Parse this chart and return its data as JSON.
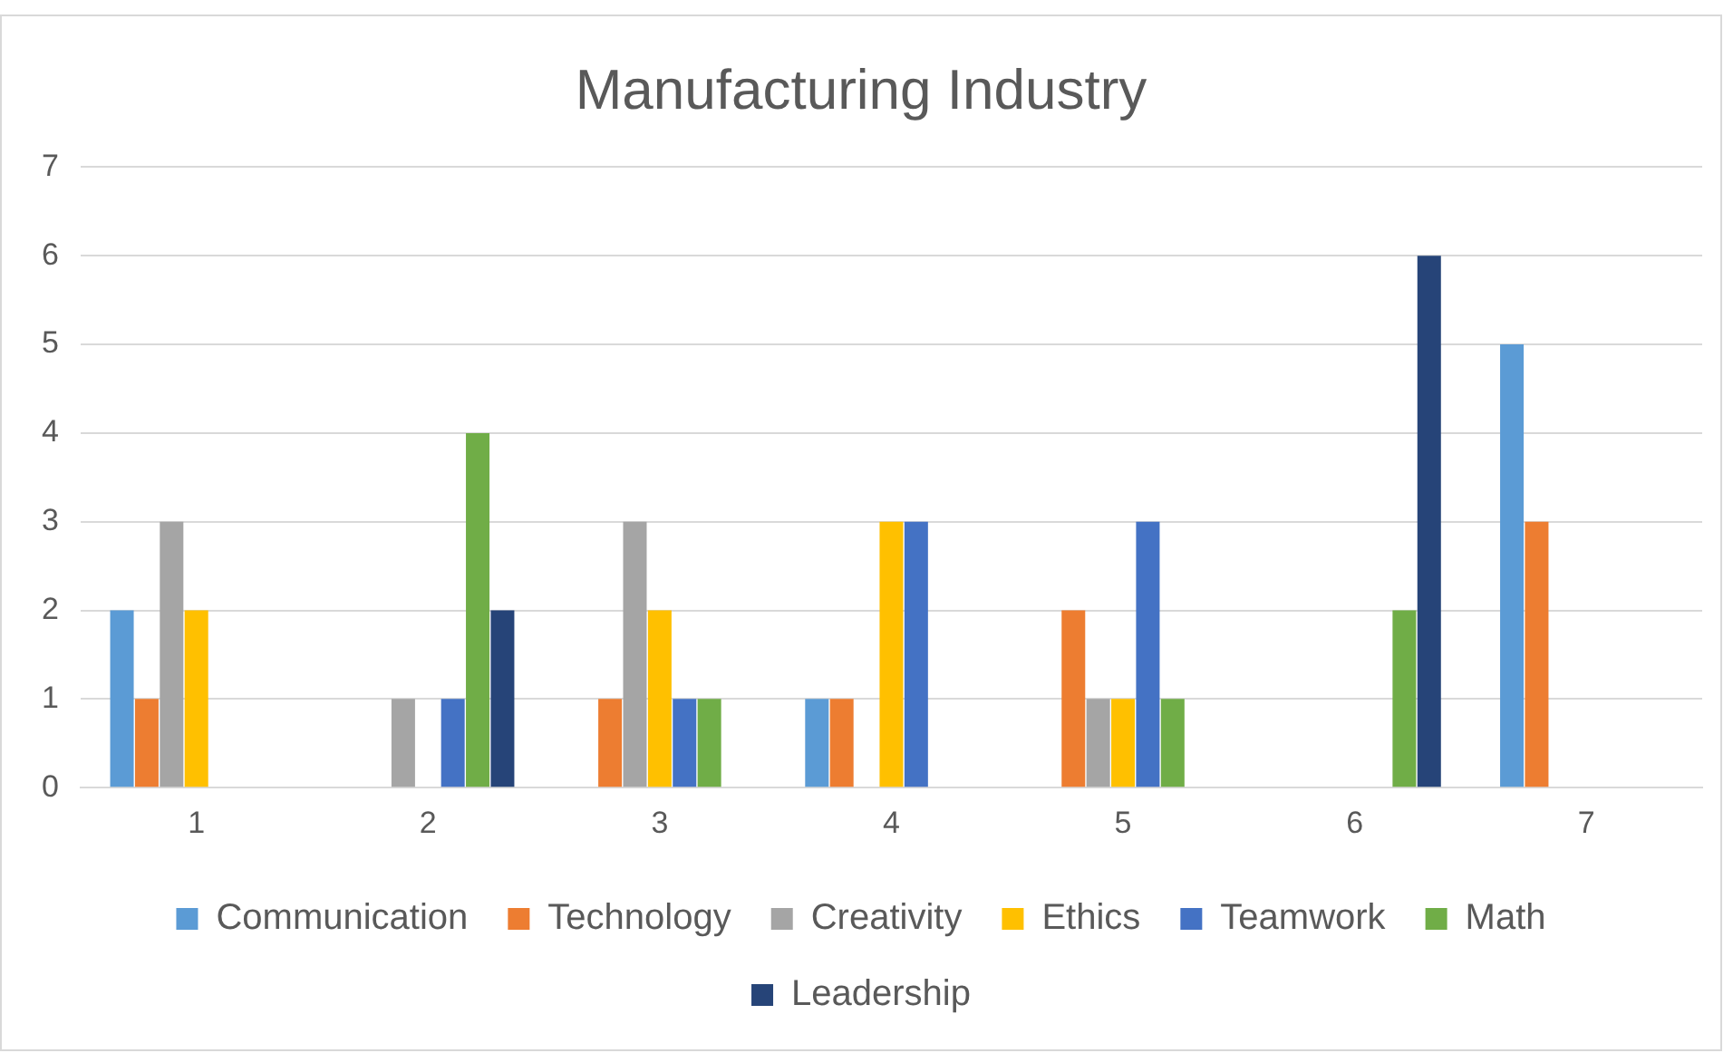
{
  "chart_data": {
    "type": "bar",
    "title": "Manufacturing Industry",
    "categories": [
      "1",
      "2",
      "3",
      "4",
      "5",
      "6",
      "7"
    ],
    "series": [
      {
        "name": "Communication",
        "color": "#5b9bd5",
        "values": [
          2,
          0,
          0,
          1,
          0,
          0,
          5
        ]
      },
      {
        "name": "Technology",
        "color": "#ed7d31",
        "values": [
          1,
          0,
          1,
          1,
          2,
          0,
          3
        ]
      },
      {
        "name": "Creativity",
        "color": "#a5a5a5",
        "values": [
          3,
          1,
          3,
          0,
          1,
          0,
          0
        ]
      },
      {
        "name": "Ethics",
        "color": "#ffc000",
        "values": [
          2,
          0,
          2,
          3,
          1,
          0,
          0
        ]
      },
      {
        "name": "Teamwork",
        "color": "#4472c4",
        "values": [
          0,
          1,
          1,
          3,
          3,
          0,
          0
        ]
      },
      {
        "name": "Math",
        "color": "#70ad47",
        "values": [
          0,
          4,
          1,
          0,
          1,
          2,
          0
        ]
      },
      {
        "name": "Leadership",
        "color": "#264478",
        "values": [
          0,
          2,
          0,
          0,
          0,
          6,
          0
        ]
      }
    ],
    "ylim": [
      0,
      7
    ],
    "yticks": [
      0,
      1,
      2,
      3,
      4,
      5,
      6,
      7
    ],
    "grid": "y",
    "legend": "bottom"
  }
}
